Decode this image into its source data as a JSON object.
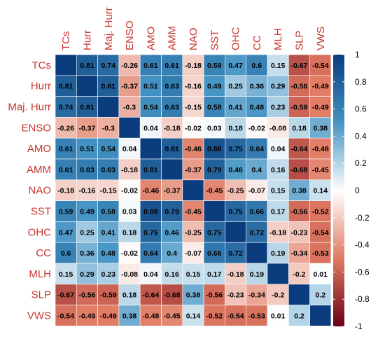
{
  "chart_data": {
    "type": "heatmap",
    "variables": [
      "TCs",
      "Hurr",
      "Maj. Hurr",
      "ENSO",
      "AMO",
      "AMM",
      "NAO",
      "SST",
      "OHC",
      "CC",
      "MLH",
      "SLP",
      "VWS"
    ],
    "matrix": [
      [
        1,
        0.81,
        0.74,
        -0.26,
        0.61,
        0.61,
        -0.18,
        0.59,
        0.47,
        0.6,
        0.15,
        -0.67,
        -0.54
      ],
      [
        0.81,
        1,
        0.81,
        -0.37,
        0.51,
        0.63,
        -0.16,
        0.49,
        0.25,
        0.36,
        0.29,
        -0.56,
        -0.49
      ],
      [
        0.74,
        0.81,
        1,
        -0.3,
        0.54,
        0.63,
        -0.15,
        0.58,
        0.41,
        0.48,
        0.23,
        -0.59,
        -0.49
      ],
      [
        -0.26,
        -0.37,
        -0.3,
        1,
        0.04,
        -0.18,
        -0.02,
        0.03,
        0.18,
        -0.02,
        -0.08,
        0.18,
        0.38
      ],
      [
        0.61,
        0.51,
        0.54,
        0.04,
        1,
        0.81,
        -0.46,
        0.88,
        0.75,
        0.64,
        0.04,
        -0.64,
        -0.48
      ],
      [
        0.61,
        0.63,
        0.63,
        -0.18,
        0.81,
        1,
        -0.37,
        0.79,
        0.46,
        0.4,
        0.16,
        -0.68,
        -0.45
      ],
      [
        -0.18,
        -0.16,
        -0.15,
        -0.02,
        -0.46,
        -0.37,
        1,
        -0.45,
        -0.25,
        -0.07,
        0.15,
        0.38,
        0.14
      ],
      [
        0.59,
        0.49,
        0.58,
        0.03,
        0.88,
        0.79,
        -0.45,
        1,
        0.75,
        0.66,
        0.17,
        -0.56,
        -0.52
      ],
      [
        0.47,
        0.25,
        0.41,
        0.18,
        0.75,
        0.46,
        -0.25,
        0.75,
        1,
        0.72,
        -0.18,
        -0.23,
        -0.54
      ],
      [
        0.6,
        0.36,
        0.48,
        -0.02,
        0.64,
        0.4,
        -0.07,
        0.66,
        0.72,
        1,
        0.19,
        -0.34,
        -0.53
      ],
      [
        0.15,
        0.29,
        0.23,
        -0.08,
        0.04,
        0.16,
        0.15,
        0.17,
        -0.18,
        0.19,
        1,
        -0.2,
        0.01
      ],
      [
        -0.67,
        -0.56,
        -0.59,
        0.18,
        -0.64,
        -0.68,
        0.38,
        -0.56,
        -0.23,
        -0.34,
        -0.2,
        1,
        0.2
      ],
      [
        -0.54,
        -0.49,
        -0.49,
        0.38,
        -0.48,
        -0.45,
        0.14,
        -0.52,
        -0.54,
        -0.53,
        0.01,
        0.2,
        1
      ]
    ],
    "colorbar": {
      "range": [
        -1,
        1
      ],
      "ticks": [
        "1",
        "0.8",
        "0.6",
        "0.4",
        "0.2",
        "0",
        "-0.2",
        "-0.4",
        "-0.6",
        "-0.8",
        "-1"
      ],
      "placement": "right"
    },
    "colors": {
      "positive": "#0b3d7e",
      "neutral": "#ffffff",
      "negative": "#6b0016",
      "label": "#c8352f"
    }
  }
}
